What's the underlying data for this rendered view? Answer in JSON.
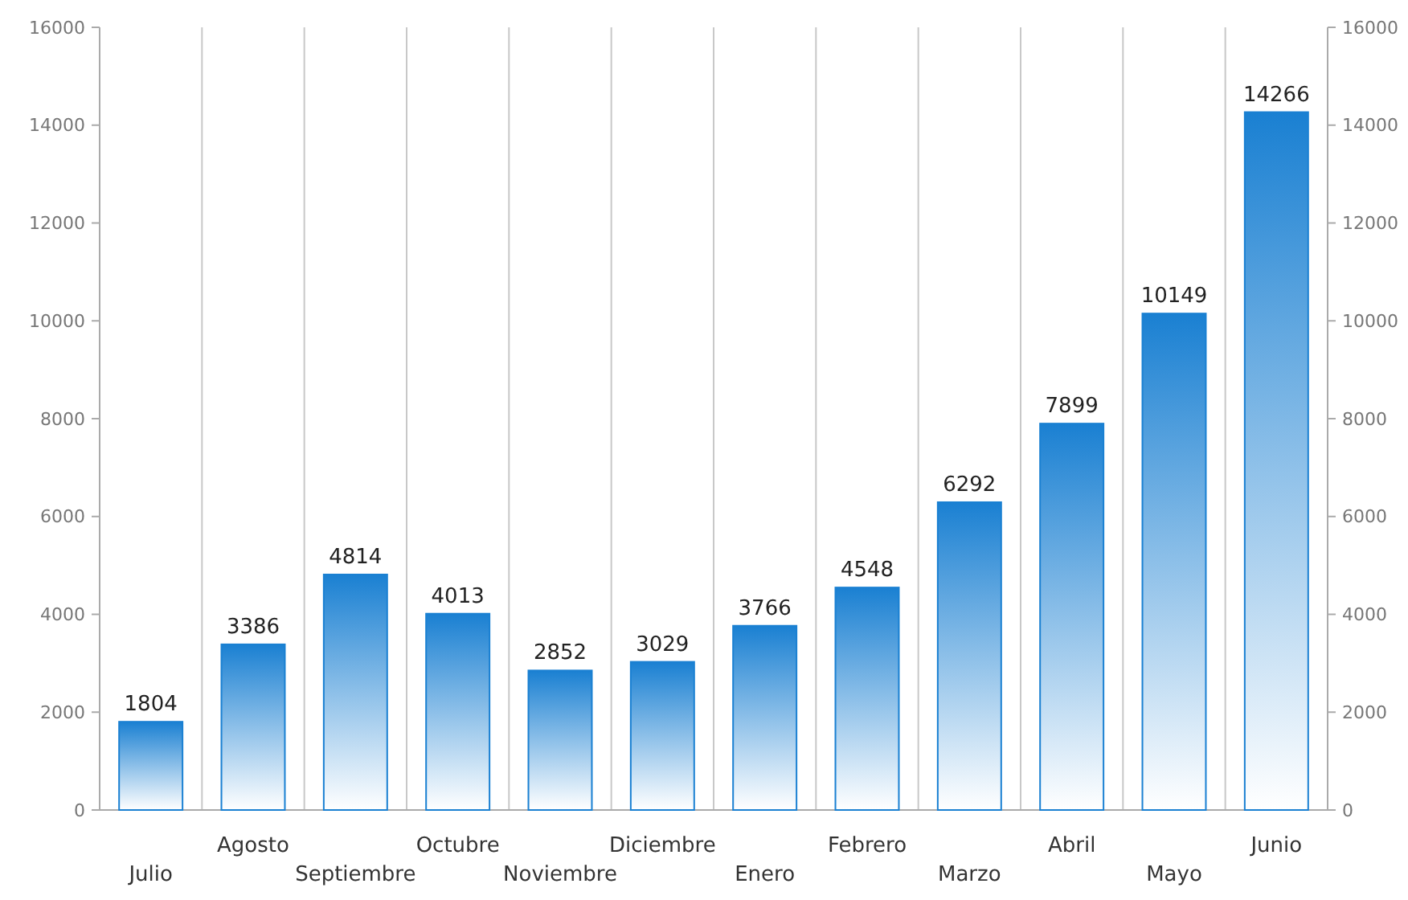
{
  "chart_data": {
    "type": "bar",
    "categories": [
      "Julio",
      "Agosto",
      "Septiembre",
      "Octubre",
      "Noviembre",
      "Diciembre",
      "Enero",
      "Febrero",
      "Marzo",
      "Abril",
      "Mayo",
      "Junio"
    ],
    "values": [
      1804,
      3386,
      4814,
      4013,
      2852,
      3029,
      3766,
      4548,
      6292,
      7899,
      10149,
      14266
    ],
    "color": "#1a80d2",
    "ylim": [
      0,
      16000
    ],
    "yticks": [
      0,
      2000,
      4000,
      6000,
      8000,
      10000,
      12000,
      14000,
      16000
    ],
    "y2lim": [
      0,
      16000
    ],
    "y2ticks": [
      0,
      2000,
      4000,
      6000,
      8000,
      10000,
      12000,
      14000,
      16000
    ],
    "grid": "x",
    "data_labels": true
  }
}
